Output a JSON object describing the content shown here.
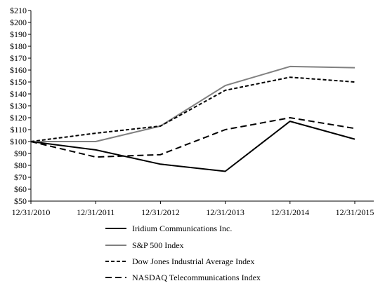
{
  "chart_data": {
    "type": "line",
    "title": "",
    "xlabel": "",
    "ylabel": "",
    "categories": [
      "12/31/2010",
      "12/31/2011",
      "12/31/2012",
      "12/31/2013",
      "12/31/2014",
      "12/31/2015"
    ],
    "y_tick_labels": [
      "$50",
      "$60",
      "$70",
      "$80",
      "$90",
      "$100",
      "$110",
      "$120",
      "$130",
      "$140",
      "$150",
      "$160",
      "$170",
      "$180",
      "$190",
      "$200",
      "$210"
    ],
    "ylim": [
      50,
      210
    ],
    "y_tick_step": 10,
    "grid": false,
    "legend_position": "bottom",
    "series": [
      {
        "name": "Iridium Communications Inc.",
        "color": "#000000",
        "style": "solid",
        "values": [
          100,
          93,
          81,
          75,
          117,
          102
        ]
      },
      {
        "name": "S&P 500 Index",
        "color": "#808080",
        "style": "solid",
        "values": [
          100,
          100,
          113,
          147,
          163,
          162
        ]
      },
      {
        "name": "Dow Jones Industrial Average Index",
        "color": "#000000",
        "style": "short-dash",
        "values": [
          100,
          107,
          113,
          143,
          154,
          150
        ]
      },
      {
        "name": "NASDAQ Telecommunications Index",
        "color": "#000000",
        "style": "long-dash",
        "values": [
          100,
          87,
          89,
          110,
          120,
          111
        ]
      }
    ]
  }
}
